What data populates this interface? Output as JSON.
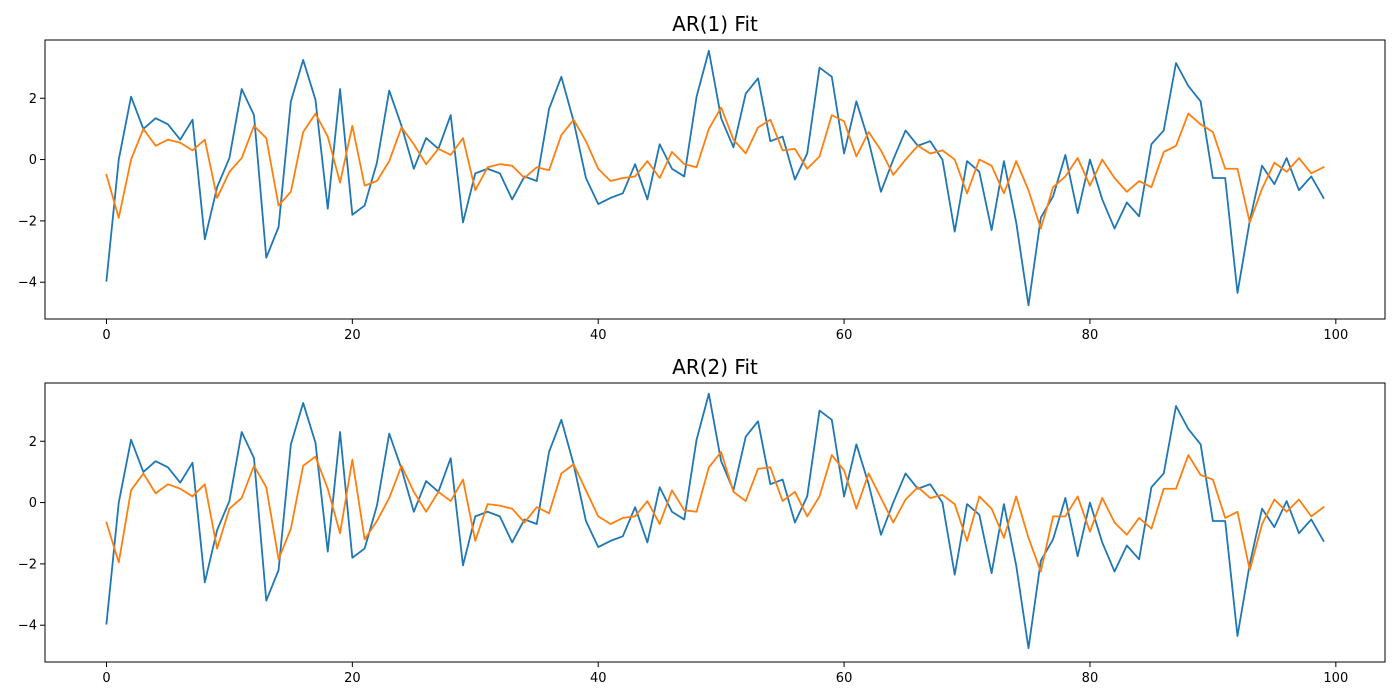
{
  "figure": {
    "background": "#ffffff"
  },
  "chart_data": [
    {
      "type": "line",
      "title": "AR(1) Fit",
      "xlim": [
        -5,
        104
      ],
      "ylim": [
        -5.2,
        3.9
      ],
      "xticks": [
        0,
        20,
        40,
        60,
        80,
        100
      ],
      "xtick_labels": [
        "0",
        "20",
        "40",
        "60",
        "80",
        "100"
      ],
      "yticks": [
        -4,
        -2,
        0,
        2
      ],
      "ytick_labels": [
        "−4",
        "−2",
        "0",
        "2"
      ],
      "grid": false,
      "x": [
        0,
        1,
        2,
        3,
        4,
        5,
        6,
        7,
        8,
        9,
        10,
        11,
        12,
        13,
        14,
        15,
        16,
        17,
        18,
        19,
        20,
        21,
        22,
        23,
        24,
        25,
        26,
        27,
        28,
        29,
        30,
        31,
        32,
        33,
        34,
        35,
        36,
        37,
        38,
        39,
        40,
        41,
        42,
        43,
        44,
        45,
        46,
        47,
        48,
        49,
        50,
        51,
        52,
        53,
        54,
        55,
        56,
        57,
        58,
        59,
        60,
        61,
        62,
        63,
        64,
        65,
        66,
        67,
        68,
        69,
        70,
        71,
        72,
        73,
        74,
        75,
        76,
        77,
        78,
        79,
        80,
        81,
        82,
        83,
        84,
        85,
        86,
        87,
        88,
        89,
        90,
        91,
        92,
        93,
        94,
        95,
        96,
        97,
        98,
        99
      ],
      "series": [
        {
          "color": "#1f77b4",
          "values": [
            -3.95,
            0.0,
            2.05,
            1.0,
            1.35,
            1.15,
            0.65,
            1.3,
            -2.6,
            -0.9,
            0.05,
            2.3,
            1.45,
            -3.2,
            -2.2,
            1.9,
            3.25,
            1.95,
            -1.6,
            2.3,
            -1.8,
            -1.5,
            -0.1,
            2.25,
            1.1,
            -0.3,
            0.7,
            0.35,
            1.45,
            -2.05,
            -0.45,
            -0.3,
            -0.45,
            -1.3,
            -0.55,
            -0.7,
            1.65,
            2.7,
            1.25,
            -0.6,
            -1.45,
            -1.25,
            -1.1,
            -0.15,
            -1.3,
            0.5,
            -0.3,
            -0.55,
            2.05,
            3.55,
            1.35,
            0.4,
            2.15,
            2.65,
            0.6,
            0.75,
            -0.65,
            0.2,
            3.0,
            2.7,
            0.2,
            1.9,
            0.6,
            -1.05,
            0.0,
            0.95,
            0.45,
            0.6,
            0.0,
            -2.35,
            -0.05,
            -0.4,
            -2.3,
            -0.05,
            -2.05,
            -4.75,
            -1.9,
            -1.2,
            0.15,
            -1.75,
            0.0,
            -1.3,
            -2.25,
            -1.4,
            -1.85,
            0.5,
            0.95,
            3.15,
            2.4,
            1.9,
            -0.6,
            -0.6,
            -4.35,
            -2.0,
            -0.2,
            -0.8,
            0.05,
            -1.0,
            -0.55,
            -1.25
          ]
        },
        {
          "color": "#ff7f0e",
          "values": [
            -0.5,
            -1.9,
            0.0,
            1.0,
            0.45,
            0.65,
            0.55,
            0.3,
            0.65,
            -1.25,
            -0.4,
            0.05,
            1.1,
            0.7,
            -1.5,
            -1.05,
            0.9,
            1.5,
            0.75,
            -0.75,
            1.1,
            -0.85,
            -0.7,
            -0.05,
            1.05,
            0.5,
            -0.15,
            0.35,
            0.15,
            0.7,
            -1.0,
            -0.25,
            -0.15,
            -0.2,
            -0.6,
            -0.25,
            -0.35,
            0.8,
            1.3,
            0.6,
            -0.3,
            -0.7,
            -0.6,
            -0.55,
            -0.05,
            -0.6,
            0.25,
            -0.15,
            -0.25,
            1.0,
            1.7,
            0.65,
            0.2,
            1.05,
            1.3,
            0.3,
            0.35,
            -0.3,
            0.1,
            1.45,
            1.25,
            0.1,
            0.9,
            0.3,
            -0.5,
            0.0,
            0.45,
            0.2,
            0.3,
            0.0,
            -1.1,
            0.0,
            -0.2,
            -1.1,
            -0.05,
            -1.0,
            -2.25,
            -0.9,
            -0.55,
            0.05,
            -0.85,
            0.0,
            -0.6,
            -1.05,
            -0.7,
            -0.9,
            0.25,
            0.45,
            1.5,
            1.15,
            0.9,
            -0.3,
            -0.3,
            -2.05,
            -0.95,
            -0.1,
            -0.4,
            0.05,
            -0.45,
            -0.25
          ]
        }
      ]
    },
    {
      "type": "line",
      "title": "AR(2) Fit",
      "xlim": [
        -5,
        104
      ],
      "ylim": [
        -5.2,
        3.9
      ],
      "xticks": [
        0,
        20,
        40,
        60,
        80,
        100
      ],
      "xtick_labels": [
        "0",
        "20",
        "40",
        "60",
        "80",
        "100"
      ],
      "yticks": [
        -4,
        -2,
        0,
        2
      ],
      "ytick_labels": [
        "−4",
        "−2",
        "0",
        "2"
      ],
      "grid": false,
      "x": [
        0,
        1,
        2,
        3,
        4,
        5,
        6,
        7,
        8,
        9,
        10,
        11,
        12,
        13,
        14,
        15,
        16,
        17,
        18,
        19,
        20,
        21,
        22,
        23,
        24,
        25,
        26,
        27,
        28,
        29,
        30,
        31,
        32,
        33,
        34,
        35,
        36,
        37,
        38,
        39,
        40,
        41,
        42,
        43,
        44,
        45,
        46,
        47,
        48,
        49,
        50,
        51,
        52,
        53,
        54,
        55,
        56,
        57,
        58,
        59,
        60,
        61,
        62,
        63,
        64,
        65,
        66,
        67,
        68,
        69,
        70,
        71,
        72,
        73,
        74,
        75,
        76,
        77,
        78,
        79,
        80,
        81,
        82,
        83,
        84,
        85,
        86,
        87,
        88,
        89,
        90,
        91,
        92,
        93,
        94,
        95,
        96,
        97,
        98,
        99
      ],
      "series": [
        {
          "color": "#1f77b4",
          "values": [
            -3.95,
            0.0,
            2.05,
            1.0,
            1.35,
            1.15,
            0.65,
            1.3,
            -2.6,
            -0.9,
            0.05,
            2.3,
            1.45,
            -3.2,
            -2.2,
            1.9,
            3.25,
            1.95,
            -1.6,
            2.3,
            -1.8,
            -1.5,
            -0.1,
            2.25,
            1.1,
            -0.3,
            0.7,
            0.35,
            1.45,
            -2.05,
            -0.45,
            -0.3,
            -0.45,
            -1.3,
            -0.55,
            -0.7,
            1.65,
            2.7,
            1.25,
            -0.6,
            -1.45,
            -1.25,
            -1.1,
            -0.15,
            -1.3,
            0.5,
            -0.3,
            -0.55,
            2.05,
            3.55,
            1.35,
            0.4,
            2.15,
            2.65,
            0.6,
            0.75,
            -0.65,
            0.2,
            3.0,
            2.7,
            0.2,
            1.9,
            0.6,
            -1.05,
            0.0,
            0.95,
            0.45,
            0.6,
            0.0,
            -2.35,
            -0.05,
            -0.4,
            -2.3,
            -0.05,
            -2.05,
            -4.75,
            -1.9,
            -1.2,
            0.15,
            -1.75,
            0.0,
            -1.3,
            -2.25,
            -1.4,
            -1.85,
            0.5,
            0.95,
            3.15,
            2.4,
            1.9,
            -0.6,
            -0.6,
            -4.35,
            -2.0,
            -0.2,
            -0.8,
            0.05,
            -1.0,
            -0.55,
            -1.25
          ]
        },
        {
          "color": "#ff7f0e",
          "values": [
            -0.65,
            -1.95,
            0.4,
            0.95,
            0.3,
            0.6,
            0.45,
            0.2,
            0.6,
            -1.5,
            -0.2,
            0.15,
            1.2,
            0.5,
            -1.85,
            -0.85,
            1.2,
            1.5,
            0.45,
            -1.0,
            1.4,
            -1.2,
            -0.6,
            0.15,
            1.2,
            0.35,
            -0.3,
            0.35,
            0.05,
            0.75,
            -1.25,
            -0.05,
            -0.1,
            -0.2,
            -0.65,
            -0.15,
            -0.35,
            0.95,
            1.25,
            0.4,
            -0.45,
            -0.7,
            -0.5,
            -0.45,
            0.05,
            -0.7,
            0.4,
            -0.25,
            -0.3,
            1.15,
            1.65,
            0.35,
            0.05,
            1.1,
            1.15,
            0.05,
            0.35,
            -0.45,
            0.2,
            1.55,
            1.05,
            -0.2,
            0.95,
            0.15,
            -0.65,
            0.1,
            0.5,
            0.15,
            0.25,
            -0.05,
            -1.25,
            0.2,
            -0.2,
            -1.15,
            0.2,
            -1.15,
            -2.25,
            -0.45,
            -0.45,
            0.2,
            -0.95,
            0.15,
            -0.65,
            -1.05,
            -0.5,
            -0.85,
            0.45,
            0.45,
            1.55,
            0.9,
            0.75,
            -0.5,
            -0.3,
            -2.2,
            -0.7,
            0.1,
            -0.3,
            0.1,
            -0.45,
            -0.15
          ]
        }
      ]
    }
  ]
}
